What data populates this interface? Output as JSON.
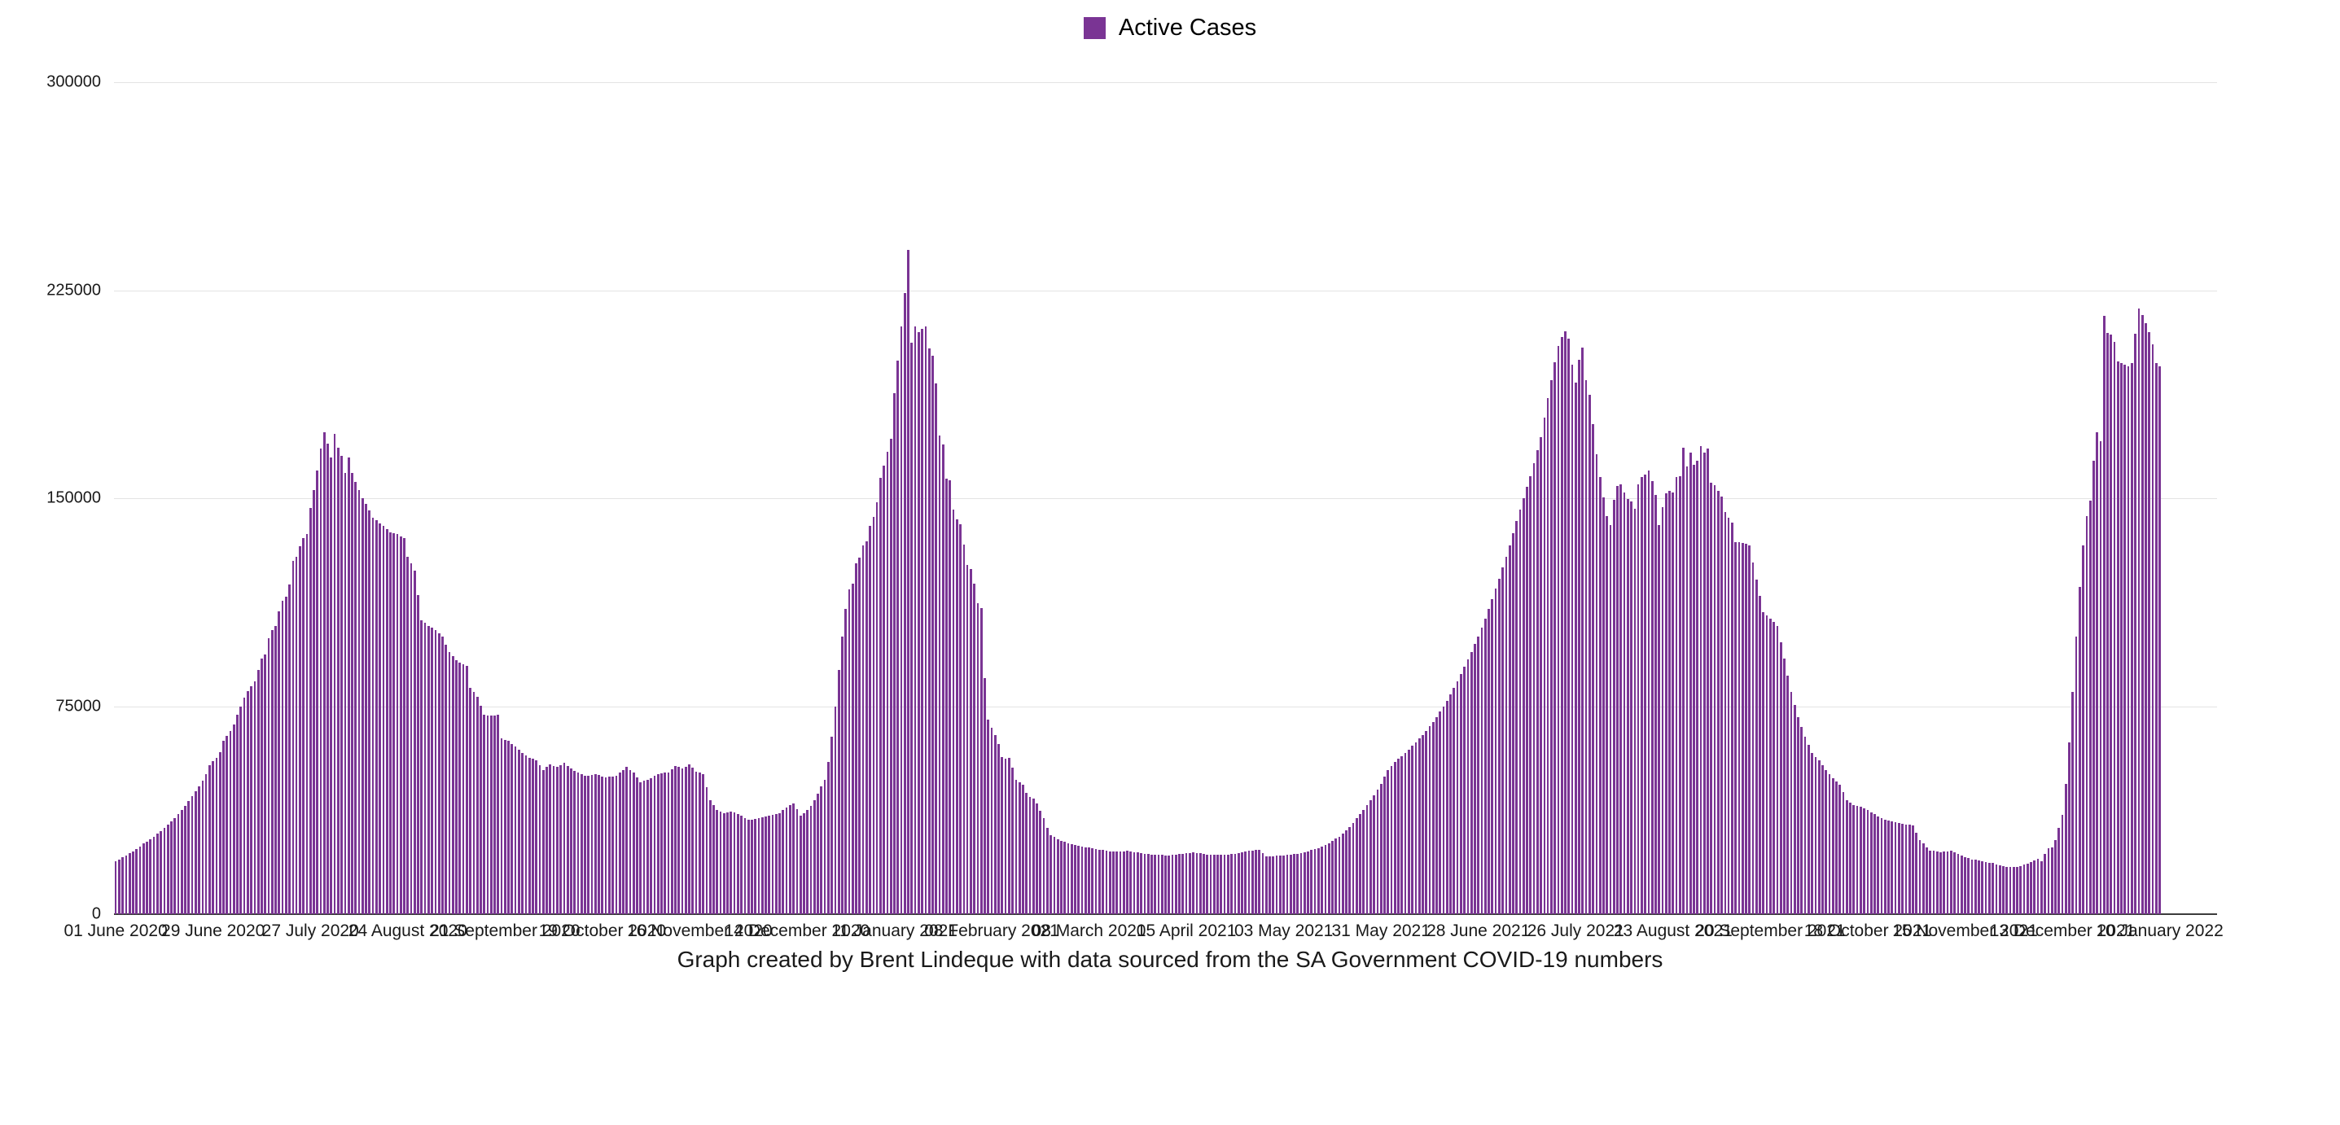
{
  "legend": {
    "label": "Active Cases",
    "swatch_color": "#7a3494"
  },
  "caption": "Graph created by Brent Lindeque with data sourced from the SA Government COVID-19 numbers",
  "chart_data": {
    "type": "bar",
    "title": "",
    "xlabel": "",
    "ylabel": "",
    "series_name": "Active Cases",
    "bar_color": "#7a3494",
    "grid": "horizontal",
    "gridline_color": "#e3e3e3",
    "axis_line_color": "#3c3c3c",
    "legend_position": "top-center",
    "ylim": [
      0,
      300000
    ],
    "y_ticks": [
      {
        "value": 0,
        "label": "0"
      },
      {
        "value": 75000,
        "label": "75000"
      },
      {
        "value": 150000,
        "label": "150000"
      },
      {
        "value": 225000,
        "label": "225000"
      },
      {
        "value": 300000,
        "label": "300000"
      }
    ],
    "x_start_date": "01 June 2020",
    "x_last_bar_date": "10 January 2022",
    "x_tick_interval_days": 28,
    "axis_day_span": 605,
    "x_tick_labels": [
      "01 June 2020",
      "29 June 2020",
      "27 July 2020",
      "24 August 2020",
      "21 September 2020",
      "19 October 2020",
      "16 November 2020",
      "14 December 2020",
      "11 January 2021",
      "08 February 2021",
      "08 March 2021",
      "05 April 2021",
      "03 May 2021",
      "31 May 2021",
      "28 June 2021",
      "26 July 2021",
      "23 August 2021",
      "20 September 2021",
      "18 October 2021",
      "15 November 2021",
      "13 December 2021",
      "10 January 2022"
    ],
    "sampling_note": "Daily bars; values estimated from pixel heights. Bars between anchor days are linear interpolations.",
    "anchor_points": [
      [
        0,
        19000
      ],
      [
        2,
        20500
      ],
      [
        4,
        22000
      ],
      [
        6,
        23500
      ],
      [
        8,
        25500
      ],
      [
        10,
        27000
      ],
      [
        12,
        29000
      ],
      [
        14,
        31000
      ],
      [
        16,
        33500
      ],
      [
        18,
        36000
      ],
      [
        20,
        39000
      ],
      [
        22,
        42500
      ],
      [
        24,
        46000
      ],
      [
        26,
        50500
      ],
      [
        27,
        53600
      ],
      [
        29,
        56500
      ],
      [
        30,
        58500
      ],
      [
        31,
        62400
      ],
      [
        33,
        66000
      ],
      [
        34,
        68500
      ],
      [
        35,
        72000
      ],
      [
        36,
        75000
      ],
      [
        37,
        78000
      ],
      [
        38,
        80500
      ],
      [
        39,
        82300
      ],
      [
        40,
        84000
      ],
      [
        41,
        88200
      ],
      [
        42,
        92300
      ],
      [
        43,
        93700
      ],
      [
        44,
        99600
      ],
      [
        45,
        102500
      ],
      [
        46,
        104000
      ],
      [
        47,
        109300
      ],
      [
        48,
        113000
      ],
      [
        49,
        114500
      ],
      [
        50,
        119000
      ],
      [
        51,
        127400
      ],
      [
        52,
        129000
      ],
      [
        53,
        132700
      ],
      [
        54,
        135600
      ],
      [
        55,
        137000
      ],
      [
        56,
        146500
      ],
      [
        57,
        153000
      ],
      [
        58,
        160000
      ],
      [
        59,
        168000
      ],
      [
        60,
        173700
      ],
      [
        61,
        169700
      ],
      [
        62,
        164700
      ],
      [
        63,
        173200
      ],
      [
        64,
        168200
      ],
      [
        65,
        165300
      ],
      [
        66,
        159100
      ],
      [
        67,
        164700
      ],
      [
        68,
        159000
      ],
      [
        69,
        156000
      ],
      [
        70,
        153000
      ],
      [
        71,
        150000
      ],
      [
        72,
        148000
      ],
      [
        74,
        143000
      ],
      [
        76,
        141000
      ],
      [
        77,
        140000
      ],
      [
        79,
        137600
      ],
      [
        81,
        137000
      ],
      [
        83,
        135600
      ],
      [
        84,
        129000
      ],
      [
        86,
        124000
      ],
      [
        88,
        106000
      ],
      [
        90,
        104000
      ],
      [
        92,
        102500
      ],
      [
        94,
        100000
      ],
      [
        96,
        94600
      ],
      [
        98,
        91700
      ],
      [
        100,
        90000
      ],
      [
        101,
        89500
      ],
      [
        102,
        81500
      ],
      [
        104,
        78500
      ],
      [
        106,
        72000
      ],
      [
        108,
        71500
      ],
      [
        110,
        71800
      ],
      [
        111,
        63300
      ],
      [
        113,
        62500
      ],
      [
        115,
        60400
      ],
      [
        117,
        58000
      ],
      [
        119,
        56500
      ],
      [
        121,
        55600
      ],
      [
        123,
        52000
      ],
      [
        125,
        54000
      ],
      [
        127,
        53000
      ],
      [
        129,
        54500
      ],
      [
        131,
        52500
      ],
      [
        133,
        51000
      ],
      [
        135,
        49800
      ],
      [
        138,
        50500
      ],
      [
        141,
        49200
      ],
      [
        144,
        50000
      ],
      [
        147,
        53000
      ],
      [
        149,
        51000
      ],
      [
        151,
        47500
      ],
      [
        153,
        48500
      ],
      [
        156,
        50500
      ],
      [
        159,
        51200
      ],
      [
        161,
        53500
      ],
      [
        163,
        52500
      ],
      [
        165,
        54000
      ],
      [
        167,
        51500
      ],
      [
        169,
        50500
      ],
      [
        171,
        41000
      ],
      [
        173,
        37500
      ],
      [
        175,
        36500
      ],
      [
        177,
        37000
      ],
      [
        179,
        36200
      ],
      [
        182,
        34000
      ],
      [
        185,
        34500
      ],
      [
        188,
        35500
      ],
      [
        191,
        36500
      ],
      [
        193,
        38500
      ],
      [
        195,
        40000
      ],
      [
        197,
        35500
      ],
      [
        199,
        37500
      ],
      [
        200,
        39000
      ],
      [
        201,
        41000
      ],
      [
        202,
        43500
      ],
      [
        203,
        46000
      ],
      [
        204,
        48500
      ],
      [
        205,
        55000
      ],
      [
        206,
        64000
      ],
      [
        207,
        75000
      ],
      [
        208,
        88000
      ],
      [
        209,
        100000
      ],
      [
        210,
        110000
      ],
      [
        211,
        117000
      ],
      [
        212,
        119300
      ],
      [
        213,
        126600
      ],
      [
        214,
        128500
      ],
      [
        215,
        133000
      ],
      [
        216,
        134500
      ],
      [
        217,
        140000
      ],
      [
        218,
        143300
      ],
      [
        219,
        148500
      ],
      [
        220,
        157300
      ],
      [
        221,
        161700
      ],
      [
        222,
        166700
      ],
      [
        223,
        171400
      ],
      [
        224,
        188000
      ],
      [
        225,
        199700
      ],
      [
        226,
        212000
      ],
      [
        227,
        224000
      ],
      [
        228,
        239500
      ],
      [
        229,
        206000
      ],
      [
        230,
        212000
      ],
      [
        231,
        210000
      ],
      [
        232,
        211000
      ],
      [
        233,
        212000
      ],
      [
        234,
        204000
      ],
      [
        235,
        201500
      ],
      [
        236,
        191300
      ],
      [
        237,
        172600
      ],
      [
        238,
        169400
      ],
      [
        239,
        157100
      ],
      [
        240,
        156500
      ],
      [
        241,
        146000
      ],
      [
        242,
        142500
      ],
      [
        243,
        140500
      ],
      [
        244,
        133300
      ],
      [
        245,
        126000
      ],
      [
        246,
        124500
      ],
      [
        247,
        119300
      ],
      [
        248,
        112000
      ],
      [
        249,
        110500
      ],
      [
        250,
        85000
      ],
      [
        251,
        70100
      ],
      [
        252,
        67200
      ],
      [
        253,
        64500
      ],
      [
        254,
        61300
      ],
      [
        255,
        56700
      ],
      [
        256,
        56100
      ],
      [
        257,
        56400
      ],
      [
        258,
        52900
      ],
      [
        259,
        48500
      ],
      [
        260,
        47600
      ],
      [
        261,
        46700
      ],
      [
        262,
        43800
      ],
      [
        263,
        42300
      ],
      [
        264,
        41800
      ],
      [
        265,
        40000
      ],
      [
        266,
        37400
      ],
      [
        267,
        34500
      ],
      [
        268,
        31000
      ],
      [
        269,
        28600
      ],
      [
        271,
        27000
      ],
      [
        273,
        26000
      ],
      [
        276,
        25000
      ],
      [
        279,
        24200
      ],
      [
        283,
        23200
      ],
      [
        287,
        22600
      ],
      [
        291,
        22800
      ],
      [
        295,
        22000
      ],
      [
        299,
        21400
      ],
      [
        303,
        21200
      ],
      [
        307,
        21800
      ],
      [
        310,
        22300
      ],
      [
        314,
        21500
      ],
      [
        318,
        21300
      ],
      [
        322,
        21700
      ],
      [
        326,
        22800
      ],
      [
        329,
        23200
      ],
      [
        331,
        20800
      ],
      [
        334,
        21000
      ],
      [
        338,
        21400
      ],
      [
        342,
        22300
      ],
      [
        346,
        23800
      ],
      [
        349,
        25500
      ],
      [
        352,
        28000
      ],
      [
        355,
        31500
      ],
      [
        358,
        36000
      ],
      [
        361,
        41000
      ],
      [
        364,
        47000
      ],
      [
        366,
        52000
      ],
      [
        368,
        55000
      ],
      [
        371,
        58000
      ],
      [
        374,
        62000
      ],
      [
        377,
        66000
      ],
      [
        380,
        71000
      ],
      [
        383,
        77000
      ],
      [
        386,
        84000
      ],
      [
        389,
        92000
      ],
      [
        392,
        100000
      ],
      [
        395,
        110000
      ],
      [
        398,
        121000
      ],
      [
        401,
        133000
      ],
      [
        404,
        146000
      ],
      [
        407,
        158000
      ],
      [
        410,
        172000
      ],
      [
        412,
        186000
      ],
      [
        414,
        199000
      ],
      [
        415,
        205000
      ],
      [
        416,
        208200
      ],
      [
        417,
        210200
      ],
      [
        418,
        207600
      ],
      [
        419,
        198000
      ],
      [
        420,
        191600
      ],
      [
        421,
        200000
      ],
      [
        422,
        204400
      ],
      [
        423,
        192700
      ],
      [
        424,
        187200
      ],
      [
        425,
        176600
      ],
      [
        426,
        165900
      ],
      [
        427,
        157700
      ],
      [
        428,
        150400
      ],
      [
        429,
        143400
      ],
      [
        430,
        140200
      ],
      [
        431,
        149300
      ],
      [
        432,
        154500
      ],
      [
        433,
        155100
      ],
      [
        434,
        152200
      ],
      [
        435,
        149800
      ],
      [
        436,
        148900
      ],
      [
        437,
        146300
      ],
      [
        438,
        155100
      ],
      [
        439,
        157600
      ],
      [
        440,
        158600
      ],
      [
        441,
        160000
      ],
      [
        442,
        156200
      ],
      [
        443,
        151300
      ],
      [
        444,
        140200
      ],
      [
        445,
        146900
      ],
      [
        446,
        151800
      ],
      [
        447,
        152700
      ],
      [
        448,
        152200
      ],
      [
        449,
        157500
      ],
      [
        450,
        158000
      ],
      [
        451,
        168200
      ],
      [
        452,
        161500
      ],
      [
        453,
        166400
      ],
      [
        454,
        162100
      ],
      [
        455,
        163500
      ],
      [
        456,
        168800
      ],
      [
        457,
        166400
      ],
      [
        458,
        167900
      ],
      [
        459,
        155700
      ],
      [
        460,
        154800
      ],
      [
        461,
        152700
      ],
      [
        462,
        150700
      ],
      [
        463,
        144900
      ],
      [
        464,
        143100
      ],
      [
        465,
        141100
      ],
      [
        466,
        134300
      ],
      [
        468,
        134000
      ],
      [
        470,
        132900
      ],
      [
        472,
        120600
      ],
      [
        474,
        108900
      ],
      [
        476,
        106600
      ],
      [
        478,
        104000
      ],
      [
        480,
        92300
      ],
      [
        482,
        80000
      ],
      [
        484,
        71000
      ],
      [
        486,
        64000
      ],
      [
        488,
        58000
      ],
      [
        490,
        55500
      ],
      [
        492,
        52000
      ],
      [
        494,
        49000
      ],
      [
        496,
        46700
      ],
      [
        498,
        41200
      ],
      [
        500,
        39400
      ],
      [
        502,
        38800
      ],
      [
        505,
        36800
      ],
      [
        508,
        34500
      ],
      [
        511,
        33600
      ],
      [
        514,
        32500
      ],
      [
        517,
        32000
      ],
      [
        519,
        26600
      ],
      [
        522,
        23000
      ],
      [
        525,
        22400
      ],
      [
        528,
        22800
      ],
      [
        531,
        21000
      ],
      [
        534,
        19800
      ],
      [
        537,
        19000
      ],
      [
        540,
        18400
      ],
      [
        543,
        17300
      ],
      [
        546,
        16900
      ],
      [
        548,
        17300
      ],
      [
        550,
        18300
      ],
      [
        552,
        19300
      ],
      [
        553,
        20000
      ],
      [
        554,
        19000
      ],
      [
        555,
        21600
      ],
      [
        556,
        23700
      ],
      [
        557,
        24200
      ],
      [
        558,
        26600
      ],
      [
        559,
        31000
      ],
      [
        560,
        35900
      ],
      [
        561,
        47000
      ],
      [
        562,
        62000
      ],
      [
        563,
        80000
      ],
      [
        564,
        100000
      ],
      [
        565,
        118000
      ],
      [
        566,
        133000
      ],
      [
        567,
        143500
      ],
      [
        568,
        149200
      ],
      [
        569,
        163600
      ],
      [
        570,
        173800
      ],
      [
        571,
        170500
      ],
      [
        572,
        215800
      ],
      [
        573,
        209500
      ],
      [
        574,
        209000
      ],
      [
        575,
        206500
      ],
      [
        576,
        199200
      ],
      [
        577,
        198600
      ],
      [
        578,
        198000
      ],
      [
        579,
        197500
      ],
      [
        580,
        198600
      ],
      [
        581,
        209400
      ],
      [
        582,
        218400
      ],
      [
        583,
        216100
      ],
      [
        584,
        213200
      ],
      [
        585,
        210000
      ],
      [
        586,
        205600
      ],
      [
        587,
        198600
      ],
      [
        588,
        197500
      ]
    ]
  }
}
